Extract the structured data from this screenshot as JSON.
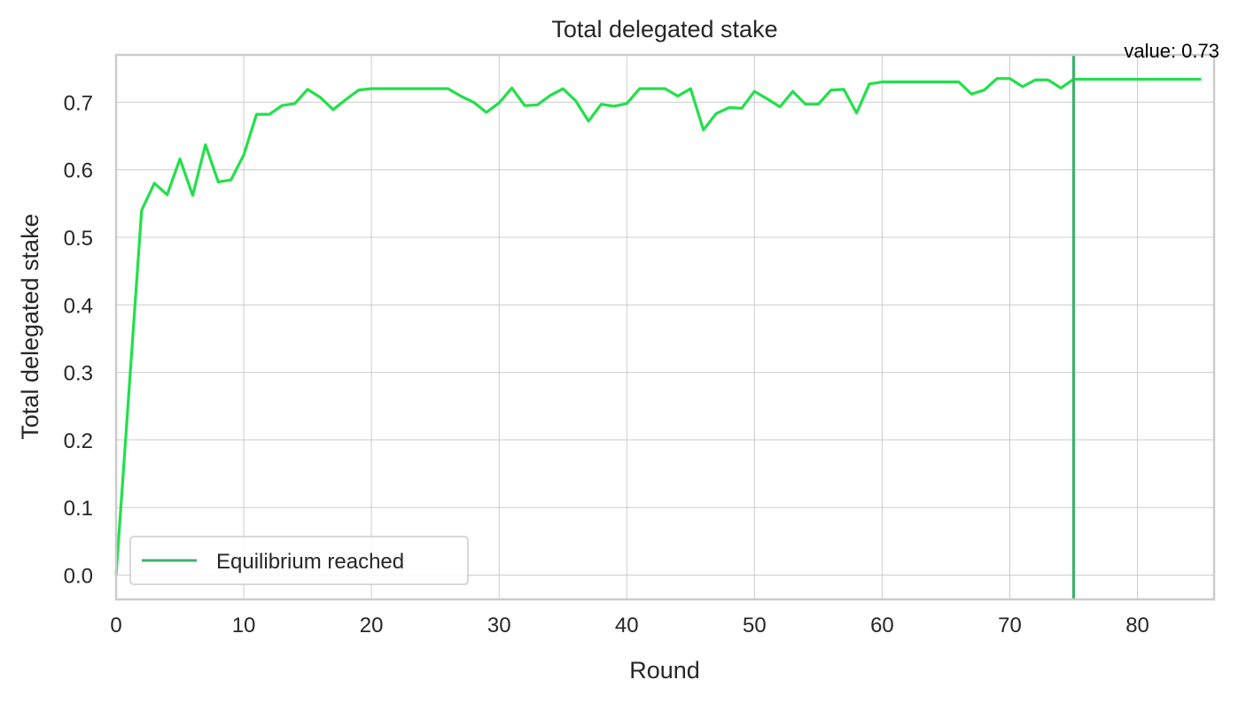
{
  "chart_data": {
    "type": "line",
    "title": "Total delegated stake",
    "xlabel": "Round",
    "ylabel": "Total delegated stake",
    "xlim": [
      0,
      86
    ],
    "ylim": [
      -0.036,
      0.77
    ],
    "xticks": [
      "0",
      "10",
      "20",
      "30",
      "40",
      "50",
      "60",
      "70",
      "80"
    ],
    "xtick_values": [
      0,
      10,
      20,
      30,
      40,
      50,
      60,
      70,
      80
    ],
    "yticks": [
      "0.0",
      "0.1",
      "0.2",
      "0.3",
      "0.4",
      "0.5",
      "0.6",
      "0.7"
    ],
    "ytick_values": [
      0.0,
      0.1,
      0.2,
      0.3,
      0.4,
      0.5,
      0.6,
      0.7
    ],
    "grid": true,
    "legend_position": "bottom-left",
    "series": [
      {
        "legend_label": "",
        "color": "#22e04a",
        "x": [
          0,
          1,
          2,
          3,
          4,
          5,
          6,
          7,
          8,
          9,
          10,
          11,
          12,
          13,
          14,
          15,
          16,
          17,
          18,
          19,
          20,
          21,
          22,
          23,
          24,
          25,
          26,
          27,
          28,
          29,
          30,
          31,
          32,
          33,
          34,
          35,
          36,
          37,
          38,
          39,
          40,
          41,
          42,
          43,
          44,
          45,
          46,
          47,
          48,
          49,
          50,
          51,
          52,
          53,
          54,
          55,
          56,
          57,
          58,
          59,
          60,
          61,
          62,
          63,
          64,
          65,
          66,
          67,
          68,
          69,
          70,
          71,
          72,
          73,
          74,
          75,
          76,
          77,
          78,
          79,
          80,
          81,
          82,
          83,
          84,
          85
        ],
        "y": [
          0.0,
          0.27,
          0.54,
          0.58,
          0.563,
          0.616,
          0.562,
          0.637,
          0.582,
          0.585,
          0.622,
          0.682,
          0.682,
          0.695,
          0.698,
          0.719,
          0.707,
          0.689,
          0.704,
          0.718,
          0.72,
          0.72,
          0.72,
          0.72,
          0.72,
          0.72,
          0.72,
          0.709,
          0.7,
          0.685,
          0.699,
          0.721,
          0.695,
          0.696,
          0.71,
          0.72,
          0.702,
          0.672,
          0.697,
          0.694,
          0.698,
          0.72,
          0.72,
          0.72,
          0.709,
          0.72,
          0.659,
          0.683,
          0.692,
          0.691,
          0.716,
          0.705,
          0.693,
          0.716,
          0.697,
          0.697,
          0.718,
          0.719,
          0.684,
          0.727,
          0.73,
          0.73,
          0.73,
          0.73,
          0.73,
          0.73,
          0.73,
          0.712,
          0.718,
          0.735,
          0.735,
          0.723,
          0.733,
          0.733,
          0.721,
          0.734,
          0.734,
          0.734,
          0.734,
          0.734,
          0.734,
          0.734,
          0.734,
          0.734,
          0.734,
          0.734
        ]
      }
    ],
    "marker": {
      "x": 75,
      "color": "#3db36a",
      "legend_label": "Equilibrium reached",
      "annotation": "value: 0.73"
    }
  }
}
